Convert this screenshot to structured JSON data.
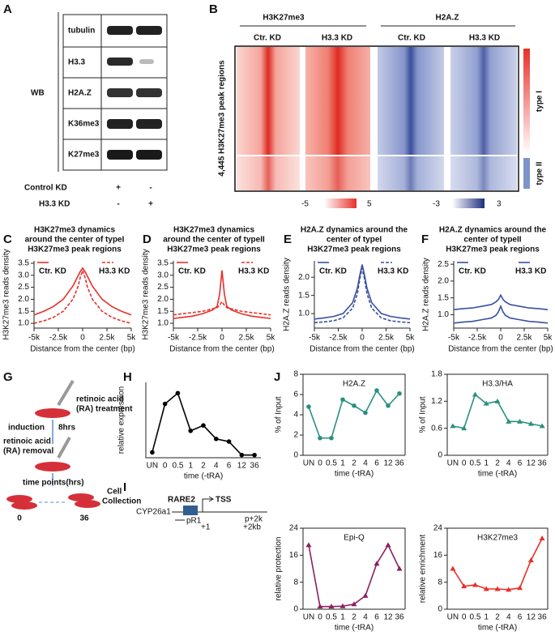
{
  "figure": {
    "panel_labels": [
      "A",
      "B",
      "C",
      "D",
      "E",
      "F",
      "G",
      "H",
      "I",
      "J"
    ],
    "western_blot": {
      "label": "WB",
      "rows": [
        "tubulin",
        "H3.3",
        "H2A.Z",
        "K36me3",
        "K27me3"
      ],
      "conditions": [
        {
          "name": "Control KD",
          "marks": [
            "+",
            "-"
          ]
        },
        {
          "name": "H3.3 KD",
          "marks": [
            "-",
            "+"
          ]
        }
      ]
    },
    "heatmap": {
      "groups": [
        "H3K27me3",
        "H2A.Z"
      ],
      "columns": [
        "Ctr. KD",
        "H3.3 KD",
        "Ctr. KD",
        "H3.3 KD"
      ],
      "row_label": "4,445 H3K27me3 peak regions",
      "types": [
        "type I",
        "type II"
      ],
      "scales": [
        [
          "-5",
          "5"
        ],
        [
          "-3",
          "3"
        ]
      ]
    },
    "scheme_g": {
      "treatment": [
        "retinoic acid",
        "(RA) treatment"
      ],
      "induction": [
        "induction",
        "8hrs"
      ],
      "removal": [
        "retinoic acid",
        "(RA) removal"
      ],
      "time_points": "time points(hrs)",
      "start": "0",
      "end": "36",
      "collection": [
        "Cell",
        "Collection"
      ]
    },
    "scheme_i": {
      "element": "RARE2",
      "tss": "TSS",
      "gene": "CYP26a1",
      "primer": "pR1",
      "plus1": "+1",
      "p2k": "p+2k",
      "plus2kb": "+2kb"
    }
  },
  "chart_data": [
    {
      "type": "line",
      "title": [
        "H3K27me3 dynamics",
        "around the center of typeI",
        "H3K27me3 peak regions"
      ],
      "xlabel": "Distance from the center (bp)",
      "ylabel": "H3K27me3 reads density",
      "x": [
        -5000,
        -4000,
        -3000,
        -2000,
        -1000,
        -500,
        -250,
        0,
        250,
        500,
        1000,
        2000,
        3000,
        4000,
        5000
      ],
      "xlim": [
        -5000,
        5000
      ],
      "ylim": [
        0.8,
        3.6
      ],
      "xticks": [
        {
          "value": -5000,
          "label": "-5k"
        },
        {
          "value": -2500,
          "label": "-2.5k"
        },
        0,
        {
          "value": 2500,
          "label": "2.5k"
        },
        {
          "value": 5000,
          "label": "5k"
        }
      ],
      "yticks": [
        {
          "value": 1,
          "label": "1.0"
        },
        1.5,
        {
          "value": 2,
          "label": "2.0"
        },
        2.5,
        {
          "value": 3,
          "label": "3.0"
        },
        3.5
      ],
      "series": [
        {
          "name": "Ctr. KD",
          "color": "#e8302a",
          "style": "solid",
          "values": [
            1.35,
            1.5,
            1.7,
            2.0,
            2.55,
            2.95,
            3.15,
            3.3,
            3.15,
            2.95,
            2.55,
            2.0,
            1.7,
            1.5,
            1.35
          ]
        },
        {
          "name": "H3.3 KD",
          "color": "#e8302a",
          "style": "dashed",
          "values": [
            1.0,
            1.1,
            1.25,
            1.5,
            2.0,
            2.5,
            2.9,
            3.2,
            2.9,
            2.5,
            2.0,
            1.5,
            1.25,
            1.1,
            1.0
          ]
        }
      ]
    },
    {
      "type": "line",
      "title": [
        "H3K27me3 dynamics",
        "around the center of typeII",
        "H3K27me3 peak regions"
      ],
      "xlabel": "Distance from the center (bp)",
      "ylabel": "H3K27me3 reads density",
      "x": [
        -5000,
        -4000,
        -3000,
        -2000,
        -1000,
        -500,
        -250,
        0,
        250,
        500,
        1000,
        2000,
        3000,
        4000,
        5000
      ],
      "xlim": [
        -5000,
        5000
      ],
      "ylim": [
        0.8,
        3.6
      ],
      "xticks": [
        {
          "value": -5000,
          "label": "-5k"
        },
        {
          "value": -2500,
          "label": "-2.5k"
        },
        0,
        {
          "value": 2500,
          "label": "2.5k"
        },
        {
          "value": 5000,
          "label": "5k"
        }
      ],
      "yticks": [
        {
          "value": 1,
          "label": "1.0"
        },
        1.5,
        {
          "value": 2,
          "label": "2.0"
        },
        2.5,
        {
          "value": 3,
          "label": "3.0"
        },
        3.5
      ],
      "series": [
        {
          "name": "Ctr. KD",
          "color": "#e8302a",
          "style": "solid",
          "values": [
            1.2,
            1.25,
            1.3,
            1.4,
            1.55,
            1.7,
            2.2,
            3.2,
            2.2,
            1.7,
            1.55,
            1.4,
            1.3,
            1.25,
            1.2
          ]
        },
        {
          "name": "H3.3 KD",
          "color": "#e8302a",
          "style": "dashed",
          "values": [
            1.35,
            1.4,
            1.45,
            1.5,
            1.6,
            1.65,
            1.75,
            1.9,
            1.75,
            1.65,
            1.6,
            1.5,
            1.45,
            1.4,
            1.35
          ]
        }
      ]
    },
    {
      "type": "line",
      "title": [
        "H2A.Z dynamics around the",
        "center of typeI",
        "H3K27me3 peak regions"
      ],
      "xlabel": "Distance from the center (bp)",
      "ylabel": "H2A.Z reads density",
      "x": [
        -5000,
        -4000,
        -3000,
        -2000,
        -1000,
        -500,
        -250,
        0,
        250,
        500,
        1000,
        2000,
        3000,
        4000,
        5000
      ],
      "xlim": [
        -5000,
        5000
      ],
      "ylim": [
        0.6,
        2.45
      ],
      "xticks": [
        {
          "value": -5000,
          "label": "-5k"
        },
        {
          "value": -2500,
          "label": "-2.5k"
        },
        0,
        {
          "value": 2500,
          "label": "2.5k"
        },
        {
          "value": 5000,
          "label": "5k"
        }
      ],
      "yticks": [
        {
          "value": 1,
          "label": "1.0"
        },
        1.5,
        {
          "value": 2,
          "label": "2.0"
        }
      ],
      "series": [
        {
          "name": "Ctr. KD",
          "color": "#3a50a0",
          "style": "solid",
          "values": [
            0.85,
            0.88,
            0.92,
            1.0,
            1.3,
            1.7,
            2.05,
            2.35,
            2.05,
            1.7,
            1.3,
            1.0,
            0.92,
            0.88,
            0.85
          ]
        },
        {
          "name": "H3.3 KD",
          "color": "#3a50a0",
          "style": "dashed",
          "values": [
            0.75,
            0.77,
            0.8,
            0.88,
            1.15,
            1.55,
            1.95,
            2.25,
            1.95,
            1.55,
            1.15,
            0.88,
            0.8,
            0.77,
            0.75
          ]
        }
      ]
    },
    {
      "type": "line",
      "title": [
        "H2A.Z dynamics around the",
        "center of typeII",
        "H3K27me3 peak regions"
      ],
      "xlabel": "Distance from the center (bp)",
      "ylabel": "H2A.Z reads density",
      "x": [
        -5000,
        -4000,
        -3000,
        -2000,
        -1000,
        -500,
        -250,
        0,
        250,
        500,
        1000,
        2000,
        3000,
        4000,
        5000
      ],
      "xlim": [
        -5000,
        5000
      ],
      "ylim": [
        0.6,
        2.6
      ],
      "xticks": [
        {
          "value": -5000,
          "label": "-5k"
        },
        {
          "value": -2500,
          "label": "-2.5k"
        },
        0,
        {
          "value": 2500,
          "label": "2.5k"
        },
        {
          "value": 5000,
          "label": "5k"
        }
      ],
      "yticks": [
        {
          "value": 1,
          "label": "1.0"
        },
        1.5,
        {
          "value": 2,
          "label": "2.0"
        },
        2.5
      ],
      "series": [
        {
          "name": "Ctr. KD",
          "color": "#3a50a0",
          "style": "solid",
          "values": [
            1.15,
            1.18,
            1.2,
            1.25,
            1.3,
            1.38,
            1.45,
            1.58,
            1.45,
            1.38,
            1.3,
            1.25,
            1.2,
            1.18,
            1.15
          ]
        },
        {
          "name": "H3.3 KD",
          "color": "#3a50a0",
          "style": "solid",
          "values": [
            0.75,
            0.78,
            0.8,
            0.85,
            0.9,
            0.98,
            1.08,
            1.25,
            1.08,
            0.98,
            0.9,
            0.85,
            0.8,
            0.78,
            0.75
          ]
        }
      ]
    },
    {
      "type": "line",
      "xlabel": "time (-tRA)",
      "ylabel": "relative expression",
      "marker": "circle",
      "color": "#000000",
      "categories": [
        "UN",
        "0",
        "0.5",
        "1",
        "2",
        "4",
        "6",
        "12",
        "36"
      ],
      "values": [
        0.1,
        1.0,
        1.2,
        0.5,
        0.6,
        0.35,
        0.3,
        0.05,
        0.05
      ],
      "ylim": [
        0,
        1.4
      ]
    },
    {
      "type": "line",
      "title": "H2A.Z",
      "xlabel": "time (-tRA)",
      "ylabel": "% of Input",
      "marker": "circle",
      "color": "#2a9080",
      "categories": [
        "UN",
        "0",
        "0.5",
        "1",
        "2",
        "4",
        "6",
        "12",
        "36"
      ],
      "values": [
        4.8,
        1.7,
        1.7,
        5.5,
        4.9,
        4.2,
        6.4,
        4.9,
        6.1
      ],
      "ylim": [
        0,
        8
      ],
      "yticks": [
        0,
        2,
        4,
        6,
        8
      ]
    },
    {
      "type": "line",
      "title": "H3.3/HA",
      "xlabel": "time (-tRA)",
      "ylabel": "% of Input",
      "marker": "triangle",
      "color": "#2a9080",
      "categories": [
        "UN",
        "0",
        "0.5",
        "1",
        "2",
        "4",
        "6",
        "12",
        "36"
      ],
      "values": [
        0.65,
        0.6,
        1.35,
        1.15,
        1.2,
        0.75,
        0.75,
        0.7,
        0.65
      ],
      "ylim": [
        0,
        1.8
      ],
      "yticks": [
        0,
        0.6,
        1.2,
        1.8
      ]
    },
    {
      "type": "line",
      "title": "Epi-Q",
      "xlabel": "time (-tRA)",
      "ylabel": "relative protection",
      "marker": "triangle",
      "color": "#8b2060",
      "categories": [
        "UN",
        "0",
        "0.5",
        "1",
        "2",
        "4",
        "6",
        "12",
        "36"
      ],
      "values": [
        19,
        0.8,
        0.8,
        0.9,
        1.5,
        4,
        13.5,
        19,
        12
      ],
      "ylim": [
        0,
        24
      ],
      "yticks": [
        0,
        8,
        16,
        24
      ]
    },
    {
      "type": "line",
      "title": "H3K27me3",
      "xlabel": "time (-tRA)",
      "ylabel": "relative enrichment",
      "marker": "triangle",
      "color": "#e8302a",
      "categories": [
        "UN",
        "0",
        "0.5",
        "1",
        "2",
        "4",
        "6",
        "12",
        "36"
      ],
      "values": [
        12,
        6.8,
        7.2,
        6,
        6,
        5.8,
        6.3,
        14.5,
        21
      ],
      "ylim": [
        0,
        24
      ],
      "yticks": [
        0,
        8,
        16,
        24
      ]
    }
  ]
}
